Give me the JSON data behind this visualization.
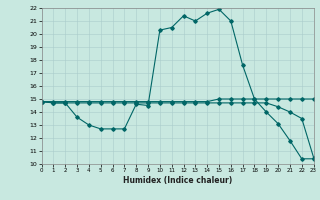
{
  "xlabel": "Humidex (Indice chaleur)",
  "bg_color": "#c8e8e0",
  "line_color": "#006666",
  "ylim": [
    10,
    22
  ],
  "xlim": [
    0,
    23
  ],
  "yticks": [
    10,
    11,
    12,
    13,
    14,
    15,
    16,
    17,
    18,
    19,
    20,
    21,
    22
  ],
  "xticks": [
    0,
    1,
    2,
    3,
    4,
    5,
    6,
    7,
    8,
    9,
    10,
    11,
    12,
    13,
    14,
    15,
    16,
    17,
    18,
    19,
    20,
    21,
    22,
    23
  ],
  "series": [
    {
      "x": [
        0,
        1,
        2,
        3,
        4,
        5,
        6,
        7,
        8,
        9,
        10,
        11,
        12,
        13,
        14,
        15,
        16,
        17,
        18,
        19,
        20,
        21,
        22,
        23
      ],
      "y": [
        14.8,
        14.7,
        14.7,
        13.6,
        13.0,
        12.7,
        12.7,
        12.7,
        14.6,
        14.5,
        20.3,
        20.5,
        21.4,
        21.0,
        21.6,
        21.9,
        21.0,
        17.6,
        15.0,
        14.0,
        13.1,
        11.8,
        10.4,
        10.4
      ]
    },
    {
      "x": [
        0,
        1,
        2,
        3,
        4,
        5,
        6,
        7,
        8,
        9,
        10,
        11,
        12,
        13,
        14,
        15,
        16,
        17,
        18,
        19,
        20,
        21,
        22,
        23
      ],
      "y": [
        14.8,
        14.8,
        14.8,
        14.8,
        14.8,
        14.8,
        14.8,
        14.8,
        14.8,
        14.8,
        14.8,
        14.8,
        14.8,
        14.8,
        14.8,
        15.0,
        15.0,
        15.0,
        15.0,
        15.0,
        15.0,
        15.0,
        15.0,
        15.0
      ]
    },
    {
      "x": [
        0,
        1,
        2,
        3,
        4,
        5,
        6,
        7,
        8,
        9,
        10,
        11,
        12,
        13,
        14,
        15,
        16,
        17,
        18,
        19,
        20,
        21,
        22,
        23
      ],
      "y": [
        14.8,
        14.7,
        14.7,
        14.7,
        14.7,
        14.7,
        14.7,
        14.7,
        14.7,
        14.7,
        14.7,
        14.7,
        14.7,
        14.7,
        14.7,
        14.7,
        14.7,
        14.7,
        14.7,
        14.7,
        14.4,
        14.0,
        13.5,
        10.5
      ]
    }
  ]
}
